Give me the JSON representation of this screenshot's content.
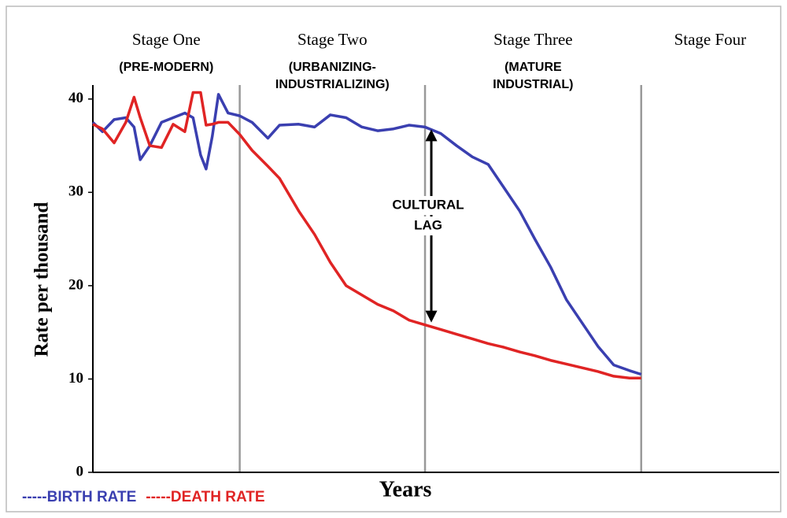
{
  "chart_data": {
    "type": "line",
    "xlabel": "Years",
    "ylabel": "Rate per thousand",
    "xlim": [
      0,
      100
    ],
    "ylim": [
      0,
      41.5
    ],
    "yticks": [
      0,
      10,
      20,
      30,
      40
    ],
    "x": [
      0,
      1.4,
      3.1,
      4.8,
      6.0,
      6.9,
      8.3,
      10.0,
      11.7,
      13.4,
      14.6,
      15.7,
      16.5,
      17.4,
      18.3,
      19.7,
      21.4,
      23.2,
      25.5,
      27.2,
      30.0,
      32.3,
      34.6,
      36.9,
      39.2,
      41.5,
      43.8,
      46.1,
      48.4,
      50.7,
      53.0,
      55.3,
      57.6,
      59.9,
      62.2,
      64.4,
      66.7,
      69.0,
      71.3,
      73.6,
      75.9,
      78.2,
      79.9
    ],
    "series": [
      {
        "name": "-----BIRTH RATE",
        "color": "#3a3fb0",
        "values": [
          37.5,
          36.5,
          37.8,
          38,
          37,
          33.5,
          35,
          37.5,
          38,
          38.5,
          38,
          34,
          32.5,
          36,
          40.5,
          38.5,
          38.2,
          37.5,
          35.8,
          37.2,
          37.3,
          37,
          38.3,
          38,
          37,
          36.6,
          36.8,
          37.2,
          37,
          36.3,
          35,
          33.8,
          33,
          30.5,
          28,
          25,
          22,
          18.5,
          16,
          13.5,
          11.5,
          10.9,
          10.5
        ]
      },
      {
        "name": "-----DEATH RATE",
        "color": "#e02424",
        "values": [
          37.3,
          36.8,
          35.3,
          37.5,
          40.2,
          38,
          35,
          34.8,
          37.3,
          36.5,
          40.7,
          40.7,
          37.2,
          37.3,
          37.5,
          37.5,
          36.2,
          34.5,
          32.8,
          31.5,
          28,
          25.5,
          22.5,
          20,
          19,
          18,
          17.3,
          16.3,
          15.8,
          15.3,
          14.8,
          14.3,
          13.8,
          13.4,
          12.9,
          12.5,
          12,
          11.6,
          11.2,
          10.8,
          10.3,
          10.1,
          10.1
        ]
      }
    ],
    "dividers": [
      21.4,
      48.4,
      79.9
    ],
    "stages": [
      {
        "name": "Stage One",
        "subtitle": [
          "(PRE-MODERN)"
        ]
      },
      {
        "name": "Stage Two",
        "subtitle": [
          "(URBANIZING-",
          "INDUSTRIALIZING)"
        ]
      },
      {
        "name": "Stage Three",
        "subtitle": [
          "(MATURE",
          "INDUSTRIAL)"
        ]
      },
      {
        "name": "Stage Four",
        "subtitle": []
      }
    ],
    "annotation": {
      "text": [
        "CULTURAL",
        "LAG"
      ],
      "index": 28
    }
  }
}
